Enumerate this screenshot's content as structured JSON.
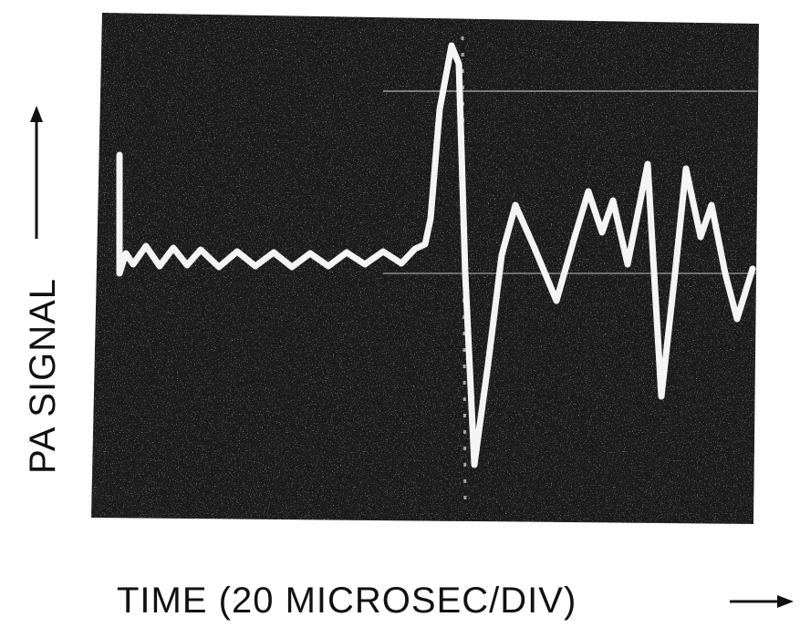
{
  "chart_data": {
    "type": "line",
    "y_label": "PA SIGNAL",
    "x_label": "TIME (20 MICROSEC/DIV)"
  }
}
